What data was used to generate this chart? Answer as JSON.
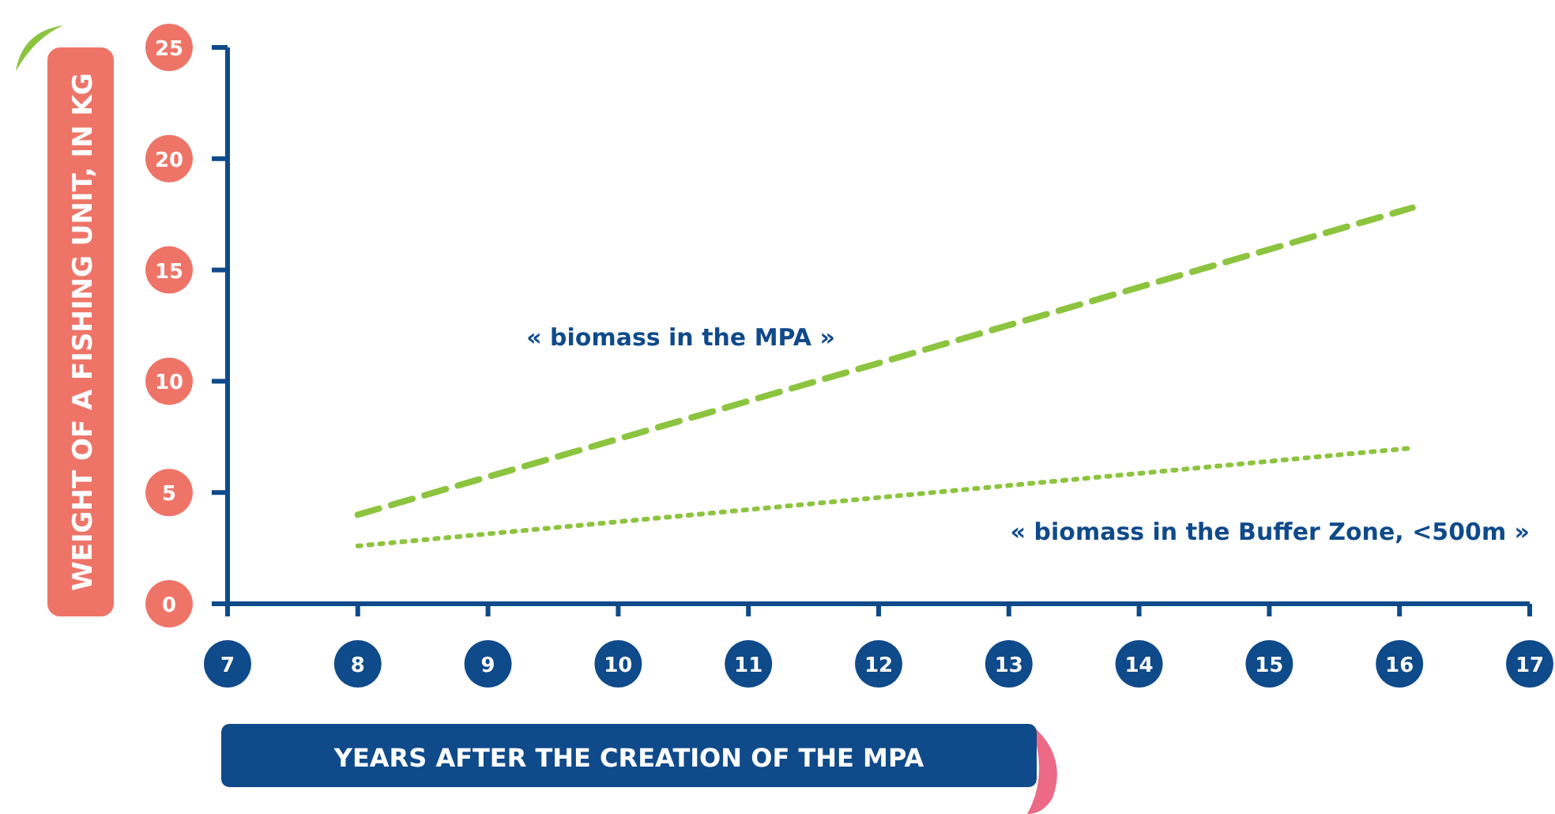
{
  "chart_data": {
    "type": "line",
    "xlabel": "YEARS AFTER THE CREATION OF THE MPA",
    "ylabel": "WEIGHT OF A FISHING UNIT, IN KG",
    "xlim": [
      7,
      17
    ],
    "xticks": [
      7,
      8,
      9,
      10,
      11,
      12,
      13,
      14,
      15,
      16,
      17
    ],
    "ylim": [
      0,
      25
    ],
    "yticks": [
      0,
      5,
      10,
      15,
      20,
      25
    ],
    "grid": false,
    "x": [
      8,
      16.1
    ],
    "series": [
      {
        "name": "« biomass in the MPA »",
        "color": "#8cc43f",
        "line_style": "dashed",
        "values": [
          4,
          17.8
        ]
      },
      {
        "name": "« biomass in the Buffer Zone, <500m »",
        "color": "#8cc43f",
        "line_style": "dotted",
        "values": [
          2.6,
          7
        ]
      }
    ]
  }
}
